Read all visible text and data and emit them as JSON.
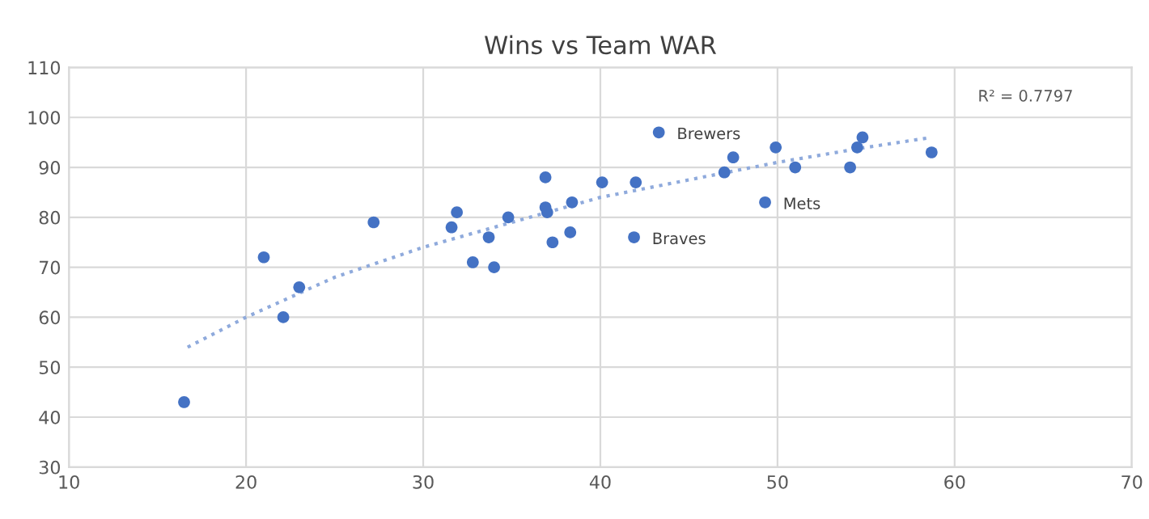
{
  "chart_data": {
    "type": "scatter",
    "title": "Wins vs Team WAR",
    "xlim": [
      10,
      70
    ],
    "xticks": [
      10,
      20,
      30,
      40,
      50,
      60,
      70
    ],
    "ylim": [
      30,
      110
    ],
    "yticks": [
      30,
      40,
      50,
      60,
      70,
      80,
      90,
      100,
      110
    ],
    "grid": true,
    "marker": "circle",
    "legend": false,
    "series": [
      {
        "color": "#4472c4",
        "x": [
          16.5,
          21,
          22.1,
          23,
          27.2,
          31.6,
          31.9,
          32.8,
          33.7,
          34,
          34.8,
          36.9,
          36.9,
          37,
          37.3,
          38.3,
          38.4,
          40.1,
          42,
          41.9,
          43.3,
          47,
          47.5,
          49.3,
          49.9,
          51,
          54.1,
          54.5,
          54.8,
          58.7
        ],
        "values": [
          43,
          72,
          60,
          66,
          79,
          78,
          81,
          71,
          76,
          70,
          80,
          88,
          82,
          81,
          75,
          77,
          83,
          87,
          87,
          76,
          97,
          89,
          92,
          83,
          94,
          90,
          90,
          94,
          96,
          93
        ]
      },
      {
        "type": "line",
        "color": "#8faadc",
        "line_style": "dotted",
        "marker": "none",
        "x": [
          16.7,
          20,
          25,
          30,
          35,
          40,
          45,
          50,
          55,
          58.7
        ],
        "values": [
          54,
          60,
          68,
          74,
          79,
          84,
          87.5,
          91,
          94,
          96
        ]
      }
    ],
    "annotations": [
      {
        "text": "Brewers",
        "x": 43.3,
        "y": 97
      },
      {
        "text": "Mets",
        "x": 49.3,
        "y": 83
      },
      {
        "text": "Braves",
        "x": 41.9,
        "y": 76
      },
      "R² = 0.7797"
    ]
  }
}
